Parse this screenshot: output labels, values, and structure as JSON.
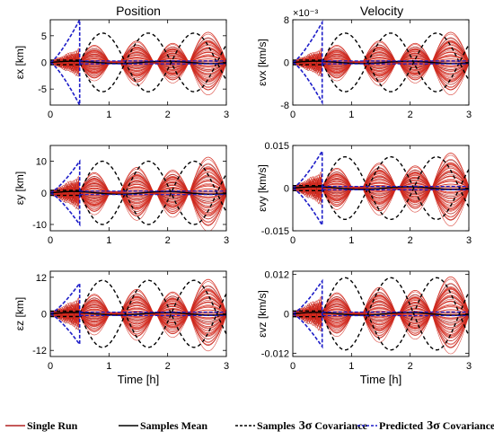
{
  "figure": {
    "column_titles": [
      "Position",
      "Velocity"
    ]
  },
  "legend": {
    "entries": [
      {
        "label": "Single Run",
        "color": "#b22222",
        "style": "solid"
      },
      {
        "label": "Samples Mean",
        "color": "#000000",
        "style": "solid"
      },
      {
        "label": "Samples",
        "symbol": "3σ",
        "suffix": "Covariance",
        "color": "#000000",
        "style": "dashed"
      },
      {
        "label": "Predicted",
        "symbol": "3σ",
        "suffix": "Covariance",
        "color": "#1c1cc8",
        "style": "dashed"
      }
    ]
  },
  "colors": {
    "single_run": "#d42a1e",
    "single_run_dark": "#8b1a1a",
    "samples_mean": "#000000",
    "samples_cov": "#000000",
    "predicted_cov": "#1c1cc8"
  },
  "chart_data": [
    {
      "type": "line",
      "id": "px",
      "title": "Position",
      "xlabel": "",
      "ylabel": "εx [km]",
      "xlim": [
        0,
        3
      ],
      "ylim": [
        -8,
        8
      ],
      "yticks": [
        -5,
        0,
        5
      ],
      "ytick_labels": [
        "-5",
        "0",
        "5"
      ],
      "xticks": [
        0,
        1,
        2,
        3
      ],
      "xtick_labels": [
        "0",
        "1",
        "2",
        "3"
      ],
      "exponent": "",
      "env_amp": 5.5,
      "pred_amp": 8,
      "samp_amp": 5.5
    },
    {
      "type": "line",
      "id": "vx",
      "title": "Velocity",
      "xlabel": "",
      "ylabel": "εvx [km/s]",
      "xlim": [
        0,
        3
      ],
      "ylim": [
        -0.008,
        0.008
      ],
      "yticks": [
        -0.008,
        0,
        0.008
      ],
      "ytick_labels": [
        "-8",
        "0",
        "8"
      ],
      "xticks": [
        0,
        1,
        2,
        3
      ],
      "xtick_labels": [
        "0",
        "1",
        "2",
        "3"
      ],
      "exponent": "×10⁻³",
      "env_amp": 0.0055,
      "pred_amp": 0.0075,
      "samp_amp": 0.0055
    },
    {
      "type": "line",
      "id": "py",
      "title": "",
      "xlabel": "",
      "ylabel": "εy [km]",
      "xlim": [
        0,
        3
      ],
      "ylim": [
        -12,
        15
      ],
      "yticks": [
        -10,
        0,
        10
      ],
      "ytick_labels": [
        "-10",
        "0",
        "10"
      ],
      "xticks": [
        0,
        1,
        2,
        3
      ],
      "xtick_labels": [
        "0",
        "1",
        "2",
        "3"
      ],
      "exponent": "",
      "env_amp": 11,
      "pred_amp": 10,
      "samp_amp": 10
    },
    {
      "type": "line",
      "id": "vy",
      "title": "",
      "xlabel": "",
      "ylabel": "εvy [km/s]",
      "xlim": [
        0,
        3
      ],
      "ylim": [
        -0.015,
        0.015
      ],
      "yticks": [
        -0.015,
        0,
        0.015
      ],
      "ytick_labels": [
        "-0.015",
        "0",
        "0.015"
      ],
      "xticks": [
        0,
        1,
        2,
        3
      ],
      "xtick_labels": [
        "0",
        "1",
        "2",
        "3"
      ],
      "exponent": "",
      "env_amp": 0.012,
      "pred_amp": 0.013,
      "samp_amp": 0.011
    },
    {
      "type": "line",
      "id": "pz",
      "title": "",
      "xlabel": "Time [h]",
      "ylabel": "εz [km]",
      "xlim": [
        0,
        3
      ],
      "ylim": [
        -14,
        14
      ],
      "yticks": [
        -12,
        0,
        12
      ],
      "ytick_labels": [
        "-12",
        "0",
        "12"
      ],
      "xticks": [
        0,
        1,
        2,
        3
      ],
      "xtick_labels": [
        "0",
        "1",
        "2",
        "3"
      ],
      "exponent": "",
      "env_amp": 11,
      "pred_amp": 10,
      "samp_amp": 11
    },
    {
      "type": "line",
      "id": "vz",
      "title": "",
      "xlabel": "Time [h]",
      "ylabel": "εvz [km/s]",
      "xlim": [
        0,
        3
      ],
      "ylim": [
        -0.013,
        0.013
      ],
      "yticks": [
        -0.012,
        0,
        0.012
      ],
      "ytick_labels": [
        "-0.012",
        "0",
        "0.012"
      ],
      "xticks": [
        0,
        1,
        2,
        3
      ],
      "xtick_labels": [
        "0",
        "1",
        "2",
        "3"
      ],
      "exponent": "",
      "env_amp": 0.011,
      "pred_amp": 0.01,
      "samp_amp": 0.011
    }
  ]
}
